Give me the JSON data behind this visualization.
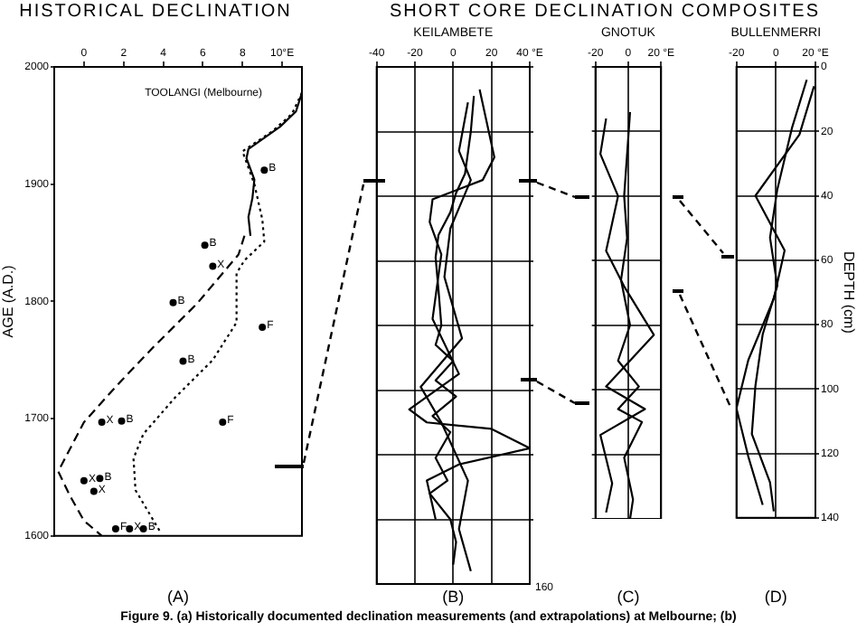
{
  "chart_data": [
    {
      "type": "line",
      "title": "HISTORICAL DECLINATION",
      "ylabel": "AGE (A.D.)",
      "xlabel": "(A)",
      "xlim": [
        -1.5,
        11
      ],
      "xticks": [
        0,
        2,
        4,
        6,
        8,
        {
          "value": 10,
          "label": "10°E"
        }
      ],
      "ylim": [
        1600,
        2000
      ],
      "yticks": [
        1600,
        1700,
        1800,
        1900,
        2000
      ],
      "grid": false,
      "legend": false,
      "marker": "none",
      "series": [
        {
          "name": "TOOLANGI (Melbourne)",
          "color": "#000000",
          "line_style": "solid",
          "x": [
            11,
            10.7,
            9.9,
            8.3,
            8.2,
            8.6,
            8.5,
            8.3,
            8.4
          ],
          "values": [
            1978,
            1962,
            1949,
            1930,
            1922,
            1904,
            1888,
            1872,
            1856
          ]
        },
        {
          "color": "#000000",
          "line_style": "dotted",
          "x": [
            11,
            10.5,
            9.5,
            8.0,
            8.6,
            9.0,
            9.1,
            8.1,
            7.7,
            7.7,
            6.5,
            4.6,
            3.0,
            2.5,
            2.6,
            3.9
          ],
          "values": [
            1978,
            1960,
            1945,
            1928,
            1900,
            1870,
            1851,
            1835,
            1824,
            1782,
            1750,
            1718,
            1687,
            1666,
            1639,
            1602
          ]
        },
        {
          "color": "#000000",
          "line_style": "dashed",
          "x": [
            8.1,
            7.8,
            7.0,
            5.7,
            3.5,
            1.7,
            0.0,
            -1.3,
            -0.7,
            0.0,
            0.9
          ],
          "values": [
            1856,
            1840,
            1824,
            1798,
            1761,
            1729,
            1697,
            1655,
            1634,
            1613,
            1600
          ]
        },
        {
          "type": "scatter",
          "name": "B",
          "color": "#000000",
          "marker": "circle",
          "x": [
            9.1,
            6.1,
            4.5,
            5.0,
            1.9,
            0.8,
            3.0
          ],
          "values": [
            1912,
            1848,
            1799,
            1749,
            1698,
            1649,
            1606
          ]
        },
        {
          "type": "scatter",
          "name": "X",
          "color": "#000000",
          "marker": "circle",
          "x": [
            6.5,
            0.9,
            0.0,
            0.5,
            2.3
          ],
          "values": [
            1830,
            1697,
            1647,
            1638,
            1606
          ]
        },
        {
          "type": "scatter",
          "name": "F",
          "color": "#000000",
          "marker": "circle",
          "x": [
            9.0,
            7.0,
            1.6
          ],
          "values": [
            1778,
            1697,
            1606
          ]
        }
      ],
      "annotations": [
        "Figure 9. (a) Historically documented declination measurements (and extrapolations) at Melbourne; (b)"
      ]
    },
    {
      "type": "line",
      "title": "SHORT CORE DECLINATION COMPOSITES",
      "subtitle": "KEILAMBETE",
      "xlabel": "(B)",
      "xlim": [
        -40,
        40
      ],
      "xticks": [
        -40,
        -20,
        0,
        20,
        {
          "value": 40,
          "label": "40 °E"
        }
      ],
      "ylim": [
        160,
        0
      ],
      "yticks": [
        0,
        20,
        40,
        60,
        80,
        100,
        120,
        140
      ],
      "tick_labels": "x",
      "grid": true,
      "legend": false,
      "marker": "none",
      "series": [
        {
          "color": "#000000",
          "x": [
            10.8,
            9.2,
            6.2,
            1.5,
            -1.5,
            -7.7,
            -9.2,
            -7.7,
            -6.2,
            -9.2,
            0,
            -9.2,
            1.5,
            -10.8,
            -1.5,
            -9.2,
            -3,
            -12.3,
            -1.5,
            1.5,
            0
          ],
          "values": [
            9,
            20,
            33,
            39,
            45,
            52,
            59,
            69,
            80,
            86,
            91,
            97,
            102,
            108,
            113,
            121,
            128,
            132,
            140,
            147,
            154
          ]
        },
        {
          "color": "#000000",
          "x": [
            13.8,
            21.5,
            15.4,
            -10.8,
            -12.3,
            -6.2,
            -10.8,
            3,
            -23,
            -13.8,
            20,
            40,
            3,
            -13.8,
            -9.2
          ],
          "values": [
            7,
            28,
            35,
            41,
            48,
            58,
            78,
            95,
            106,
            110,
            112,
            118,
            123,
            128,
            140
          ]
        },
        {
          "color": "#000000",
          "x": [
            7.7,
            3,
            9.2,
            -1.5,
            -4.6,
            4.6,
            -17,
            -6.2,
            7.7,
            3,
            9.2
          ],
          "values": [
            11,
            26,
            35,
            50,
            65,
            84,
            99,
            110,
            128,
            143,
            156
          ]
        }
      ],
      "annotations": [
        "160"
      ]
    },
    {
      "type": "line",
      "subtitle": "GNOTUK",
      "xlabel": "(C)",
      "xlim": [
        -20,
        20
      ],
      "xticks": [
        -20,
        0,
        {
          "value": 20,
          "label": "20 °E"
        }
      ],
      "ylim": [
        140,
        0
      ],
      "yticks": [
        0,
        20,
        40,
        60,
        80,
        100,
        120,
        140
      ],
      "tick_labels": "x",
      "grid": true,
      "legend": false,
      "marker": "none",
      "series": [
        {
          "color": "#000000",
          "x": [
            1.1,
            -0.7,
            -2.5,
            -0.7,
            -4.4,
            1.1,
            -6.2,
            6.5,
            -6.2,
            8.4,
            -2.5,
            2.9,
            1.1
          ],
          "values": [
            14,
            27,
            40,
            53,
            66,
            80,
            91,
            99,
            106,
            110,
            121,
            134,
            140
          ]
        },
        {
          "color": "#000000",
          "x": [
            -13.5,
            -17,
            -6.2,
            -13.5,
            -2.5,
            15.6,
            -13.5,
            10.2,
            -17,
            -9.8,
            -13.5
          ],
          "values": [
            16,
            27,
            40,
            57,
            68,
            83,
            99,
            106,
            114,
            129,
            138
          ]
        }
      ]
    },
    {
      "type": "line",
      "subtitle": "BULLENMERRI",
      "xlabel": "(D)",
      "ylabel": "DEPTH (cm)",
      "xlim": [
        -20,
        20
      ],
      "xticks": [
        -20,
        0,
        {
          "value": 20,
          "label": "20 °E"
        }
      ],
      "ylim": [
        140,
        0
      ],
      "yticks": [
        0,
        20,
        40,
        60,
        80,
        100,
        120,
        140
      ],
      "grid": true,
      "legend": false,
      "marker": "none",
      "series": [
        {
          "color": "#000000",
          "x": [
            15.6,
            8.1,
            0.7,
            -3,
            0.7,
            -6.7,
            -10.4,
            -12.2,
            -3,
            -1.1
          ],
          "values": [
            4,
            19,
            38,
            53,
            68,
            83,
            99,
            114,
            129,
            138
          ]
        },
        {
          "color": "#000000",
          "x": [
            19.3,
            11.9,
            -10.4,
            4.4,
            -1.1,
            -14,
            -20,
            -14,
            -6.7
          ],
          "values": [
            6,
            21,
            40,
            57,
            72,
            91,
            106,
            121,
            136
          ]
        }
      ]
    }
  ]
}
